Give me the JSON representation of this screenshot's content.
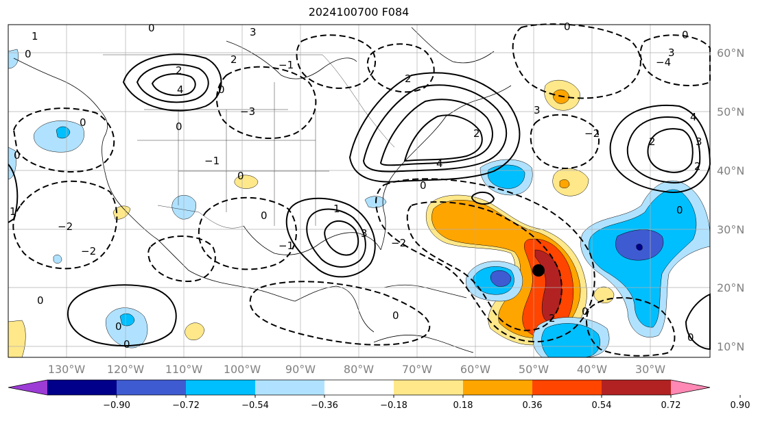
{
  "title": "2024100700 F084",
  "lon_labels": [
    "130°W",
    "120°W",
    "110°W",
    "100°W",
    "90°W",
    "80°W",
    "70°W",
    "60°W",
    "50°W",
    "40°W",
    "30°W"
  ],
  "lat_labels": [
    "60°N",
    "50°N",
    "40°N",
    "30°N",
    "20°N",
    "10°N"
  ],
  "colorbar": {
    "ticks": [
      "−0.90",
      "−0.72",
      "−0.54",
      "−0.36",
      "−0.18",
      "0.18",
      "0.36",
      "0.54",
      "0.72",
      "0.90"
    ],
    "colors": [
      "#9c3bd6",
      "#00008b",
      "#3e5bd1",
      "#00bfff",
      "#b0e2ff",
      "#ffffff",
      "#ffe88a",
      "#ffa500",
      "#ff4500",
      "#b22222",
      "#ff88b4"
    ]
  },
  "contour_labels": [
    "0",
    "1",
    "2",
    "3",
    "4",
    "−1",
    "−2",
    "−3",
    "−4"
  ],
  "marker": {
    "name": "storm-center",
    "lon": -50.5,
    "lat": 23
  }
}
